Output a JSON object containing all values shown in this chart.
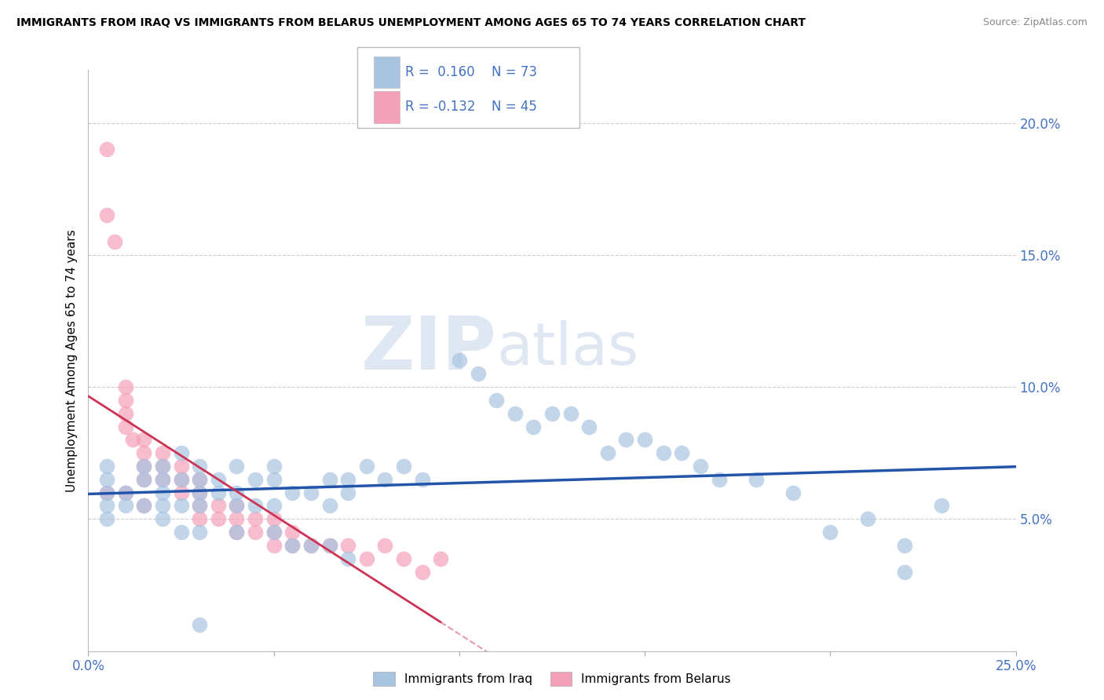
{
  "title": "IMMIGRANTS FROM IRAQ VS IMMIGRANTS FROM BELARUS UNEMPLOYMENT AMONG AGES 65 TO 74 YEARS CORRELATION CHART",
  "source": "Source: ZipAtlas.com",
  "ylabel": "Unemployment Among Ages 65 to 74 years",
  "xlim": [
    0.0,
    0.25
  ],
  "ylim": [
    0.0,
    0.22
  ],
  "x_ticks": [
    0.0,
    0.05,
    0.1,
    0.15,
    0.2,
    0.25
  ],
  "y_ticks": [
    0.0,
    0.05,
    0.1,
    0.15,
    0.2
  ],
  "iraq_color": "#a8c4e0",
  "belarus_color": "#f4a0b8",
  "iraq_line_color": "#2255aa",
  "belarus_line_color": "#cc3355",
  "legend_text_color": "#4472c4",
  "iraq_R": 0.16,
  "iraq_N": 73,
  "belarus_R": -0.132,
  "belarus_N": 45,
  "watermark_zip": "ZIP",
  "watermark_atlas": "atlas",
  "iraq_x": [
    0.005,
    0.005,
    0.005,
    0.005,
    0.01,
    0.015,
    0.015,
    0.015,
    0.02,
    0.02,
    0.02,
    0.02,
    0.025,
    0.025,
    0.025,
    0.03,
    0.03,
    0.03,
    0.03,
    0.035,
    0.035,
    0.04,
    0.04,
    0.04,
    0.045,
    0.045,
    0.05,
    0.05,
    0.05,
    0.055,
    0.06,
    0.065,
    0.065,
    0.07,
    0.07,
    0.075,
    0.08,
    0.085,
    0.09,
    0.1,
    0.105,
    0.11,
    0.115,
    0.12,
    0.125,
    0.13,
    0.135,
    0.14,
    0.145,
    0.15,
    0.155,
    0.16,
    0.165,
    0.17,
    0.18,
    0.19,
    0.2,
    0.21,
    0.22,
    0.23,
    0.005,
    0.01,
    0.02,
    0.025,
    0.03,
    0.04,
    0.05,
    0.055,
    0.06,
    0.065,
    0.07,
    0.22,
    0.03
  ],
  "iraq_y": [
    0.055,
    0.06,
    0.065,
    0.07,
    0.06,
    0.055,
    0.065,
    0.07,
    0.055,
    0.06,
    0.065,
    0.07,
    0.055,
    0.065,
    0.075,
    0.055,
    0.06,
    0.065,
    0.07,
    0.06,
    0.065,
    0.055,
    0.06,
    0.07,
    0.055,
    0.065,
    0.055,
    0.065,
    0.07,
    0.06,
    0.06,
    0.055,
    0.065,
    0.06,
    0.065,
    0.07,
    0.065,
    0.07,
    0.065,
    0.11,
    0.105,
    0.095,
    0.09,
    0.085,
    0.09,
    0.09,
    0.085,
    0.075,
    0.08,
    0.08,
    0.075,
    0.075,
    0.07,
    0.065,
    0.065,
    0.06,
    0.045,
    0.05,
    0.04,
    0.055,
    0.05,
    0.055,
    0.05,
    0.045,
    0.045,
    0.045,
    0.045,
    0.04,
    0.04,
    0.04,
    0.035,
    0.03,
    0.01
  ],
  "belarus_x": [
    0.005,
    0.005,
    0.007,
    0.01,
    0.01,
    0.01,
    0.01,
    0.012,
    0.015,
    0.015,
    0.015,
    0.015,
    0.02,
    0.02,
    0.02,
    0.025,
    0.025,
    0.025,
    0.03,
    0.03,
    0.03,
    0.03,
    0.035,
    0.035,
    0.04,
    0.04,
    0.04,
    0.045,
    0.045,
    0.05,
    0.05,
    0.05,
    0.055,
    0.055,
    0.06,
    0.065,
    0.07,
    0.075,
    0.08,
    0.085,
    0.09,
    0.095,
    0.005,
    0.01,
    0.015
  ],
  "belarus_y": [
    0.19,
    0.165,
    0.155,
    0.1,
    0.095,
    0.09,
    0.085,
    0.08,
    0.08,
    0.075,
    0.07,
    0.065,
    0.075,
    0.07,
    0.065,
    0.07,
    0.065,
    0.06,
    0.065,
    0.06,
    0.055,
    0.05,
    0.055,
    0.05,
    0.055,
    0.05,
    0.045,
    0.05,
    0.045,
    0.05,
    0.045,
    0.04,
    0.045,
    0.04,
    0.04,
    0.04,
    0.04,
    0.035,
    0.04,
    0.035,
    0.03,
    0.035,
    0.06,
    0.06,
    0.055
  ]
}
